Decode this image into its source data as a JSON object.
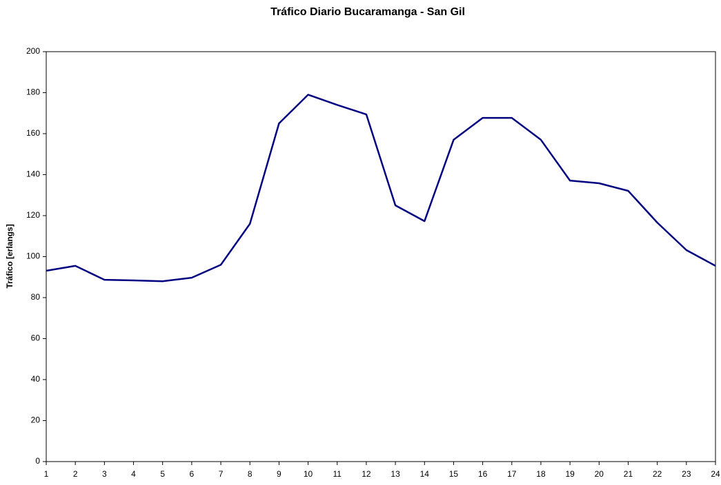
{
  "chart_data": {
    "type": "line",
    "title": "Tráfico Diario Bucaramanga - San Gil",
    "y_label": "Tráfico [erlangs]",
    "x": [
      1,
      2,
      3,
      4,
      5,
      6,
      7,
      8,
      9,
      10,
      11,
      12,
      13,
      14,
      15,
      16,
      17,
      18,
      19,
      20,
      21,
      22,
      23,
      24
    ],
    "series": [
      {
        "name": "Tráfico",
        "color": "#000080",
        "values": [
          93.1,
          95.5,
          88.7,
          88.4,
          88,
          89.7,
          96,
          116,
          165,
          179,
          174,
          169.4,
          125,
          117.3,
          157,
          167.7,
          167.7,
          157,
          137.1,
          135.8,
          132.1,
          116.6,
          103.2,
          95.5
        ]
      }
    ],
    "xlim": [
      1,
      24
    ],
    "xticks": [
      1,
      2,
      3,
      4,
      5,
      6,
      7,
      8,
      9,
      10,
      11,
      12,
      13,
      14,
      15,
      16,
      17,
      18,
      19,
      20,
      21,
      22,
      23,
      24
    ],
    "ylim": [
      0,
      200
    ],
    "yticks": [
      0,
      20,
      40,
      60,
      80,
      100,
      120,
      140,
      160,
      180,
      200
    ],
    "grid": false
  }
}
